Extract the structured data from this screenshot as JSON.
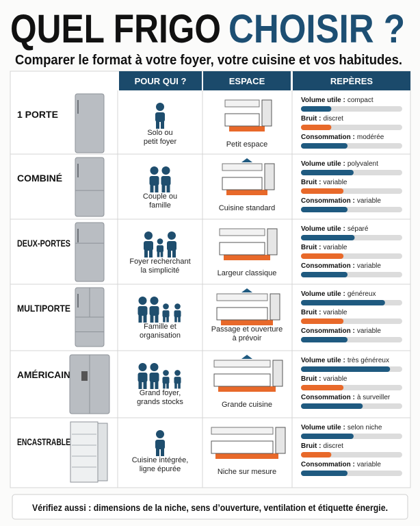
{
  "header": {
    "title_part1": "QUEL FRIGO",
    "title_part2": "CHOISIR ?",
    "subtitle": "Comparer le format à votre foyer, votre cuisine et vos habitudes."
  },
  "table": {
    "columns": [
      "POUR QUI ?",
      "ESPACE",
      "REPÈRES"
    ],
    "rows": [
      {
        "type": "1 PORTE",
        "for_whom": [
          "Solo ou",
          "petit foyer"
        ],
        "space": [
          "Petit espace"
        ],
        "gauges": [
          {
            "label": "Volume utile :",
            "value": "compact",
            "level": 30
          },
          {
            "label": "Bruit :",
            "value": "discret",
            "level": 30
          },
          {
            "label": "Consommation :",
            "value": "modérée",
            "level": 46
          }
        ]
      },
      {
        "type": "COMBINÉ",
        "for_whom": [
          "Couple ou",
          "famille"
        ],
        "space": [
          "Cuisine standard"
        ],
        "gauges": [
          {
            "label": "Volume utile :",
            "value": "polyvalent",
            "level": 52
          },
          {
            "label": "Bruit :",
            "value": "variable",
            "level": 42
          },
          {
            "label": "Consommation :",
            "value": "variable",
            "level": 46
          }
        ]
      },
      {
        "type": "DEUX-PORTES",
        "for_whom": [
          "Foyer recherchant",
          "la simplicité"
        ],
        "space": [
          "Largeur classique"
        ],
        "gauges": [
          {
            "label": "Volume utile :",
            "value": "séparé",
            "level": 53
          },
          {
            "label": "Bruit :",
            "value": "variable",
            "level": 42
          },
          {
            "label": "Consommation :",
            "value": "variable",
            "level": 46
          }
        ]
      },
      {
        "type": "MULTIPORTE",
        "for_whom": [
          "Famille et",
          "organisation"
        ],
        "space": [
          "Passage et ouverture",
          "à prévoir"
        ],
        "gauges": [
          {
            "label": "Volume utile :",
            "value": "généreux",
            "level": 83
          },
          {
            "label": "Bruit :",
            "value": "variable",
            "level": 42
          },
          {
            "label": "Consommation :",
            "value": "variable",
            "level": 46
          }
        ]
      },
      {
        "type": "AMÉRICAIN",
        "for_whom": [
          "Grand foyer,",
          "grands stocks"
        ],
        "space": [
          "Grande cuisine"
        ],
        "gauges": [
          {
            "label": "Volume utile :",
            "value": "très généreux",
            "level": 88
          },
          {
            "label": "Bruit :",
            "value": "variable",
            "level": 42
          },
          {
            "label": "Consommation :",
            "value": "à surveiller",
            "level": 61
          }
        ]
      },
      {
        "type": "ENCASTRABLE",
        "for_whom": [
          "Cuisine intégrée,",
          "ligne épurée"
        ],
        "space": [
          "Niche sur mesure"
        ],
        "gauges": [
          {
            "label": "Volume utile :",
            "value": "selon niche",
            "level": 52
          },
          {
            "label": "Bruit :",
            "value": "discret",
            "level": 30
          },
          {
            "label": "Consommation :",
            "value": "variable",
            "level": 46
          }
        ]
      }
    ]
  },
  "footer": "Vérifiez aussi : dimensions de la niche, sens d’ouverture, ventilation et étiquette énergie."
}
